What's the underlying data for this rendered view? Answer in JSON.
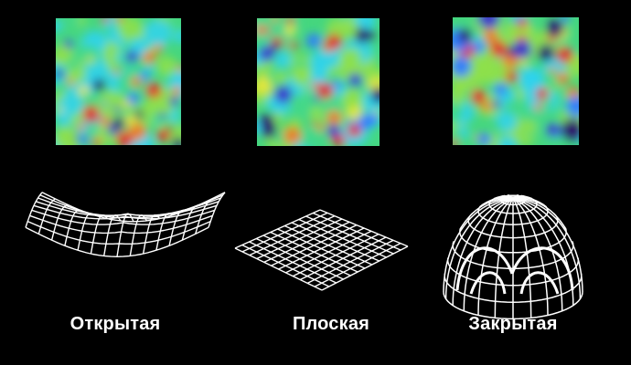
{
  "panels": [
    {
      "id": "open",
      "caption": "Открытая",
      "surface_icon": "saddle-surface-icon",
      "map_icon": "cmb-temperature-map-open-icon",
      "seed": 11
    },
    {
      "id": "flat",
      "caption": "Плоская",
      "surface_icon": "flat-grid-icon",
      "map_icon": "cmb-temperature-map-flat-icon",
      "seed": 29
    },
    {
      "id": "closed",
      "caption": "Закрытая",
      "surface_icon": "sphere-dome-icon",
      "map_icon": "cmb-temperature-map-closed-icon",
      "seed": 47
    }
  ],
  "colors": {
    "background": "#000000",
    "wireframe": "#ffffff",
    "map_palette": [
      "#2a0a6e",
      "#3b2fd0",
      "#2f7bff",
      "#2ed3f0",
      "#43d88a",
      "#8fe04a",
      "#e8e63a",
      "#f07a22",
      "#e4262a"
    ]
  }
}
